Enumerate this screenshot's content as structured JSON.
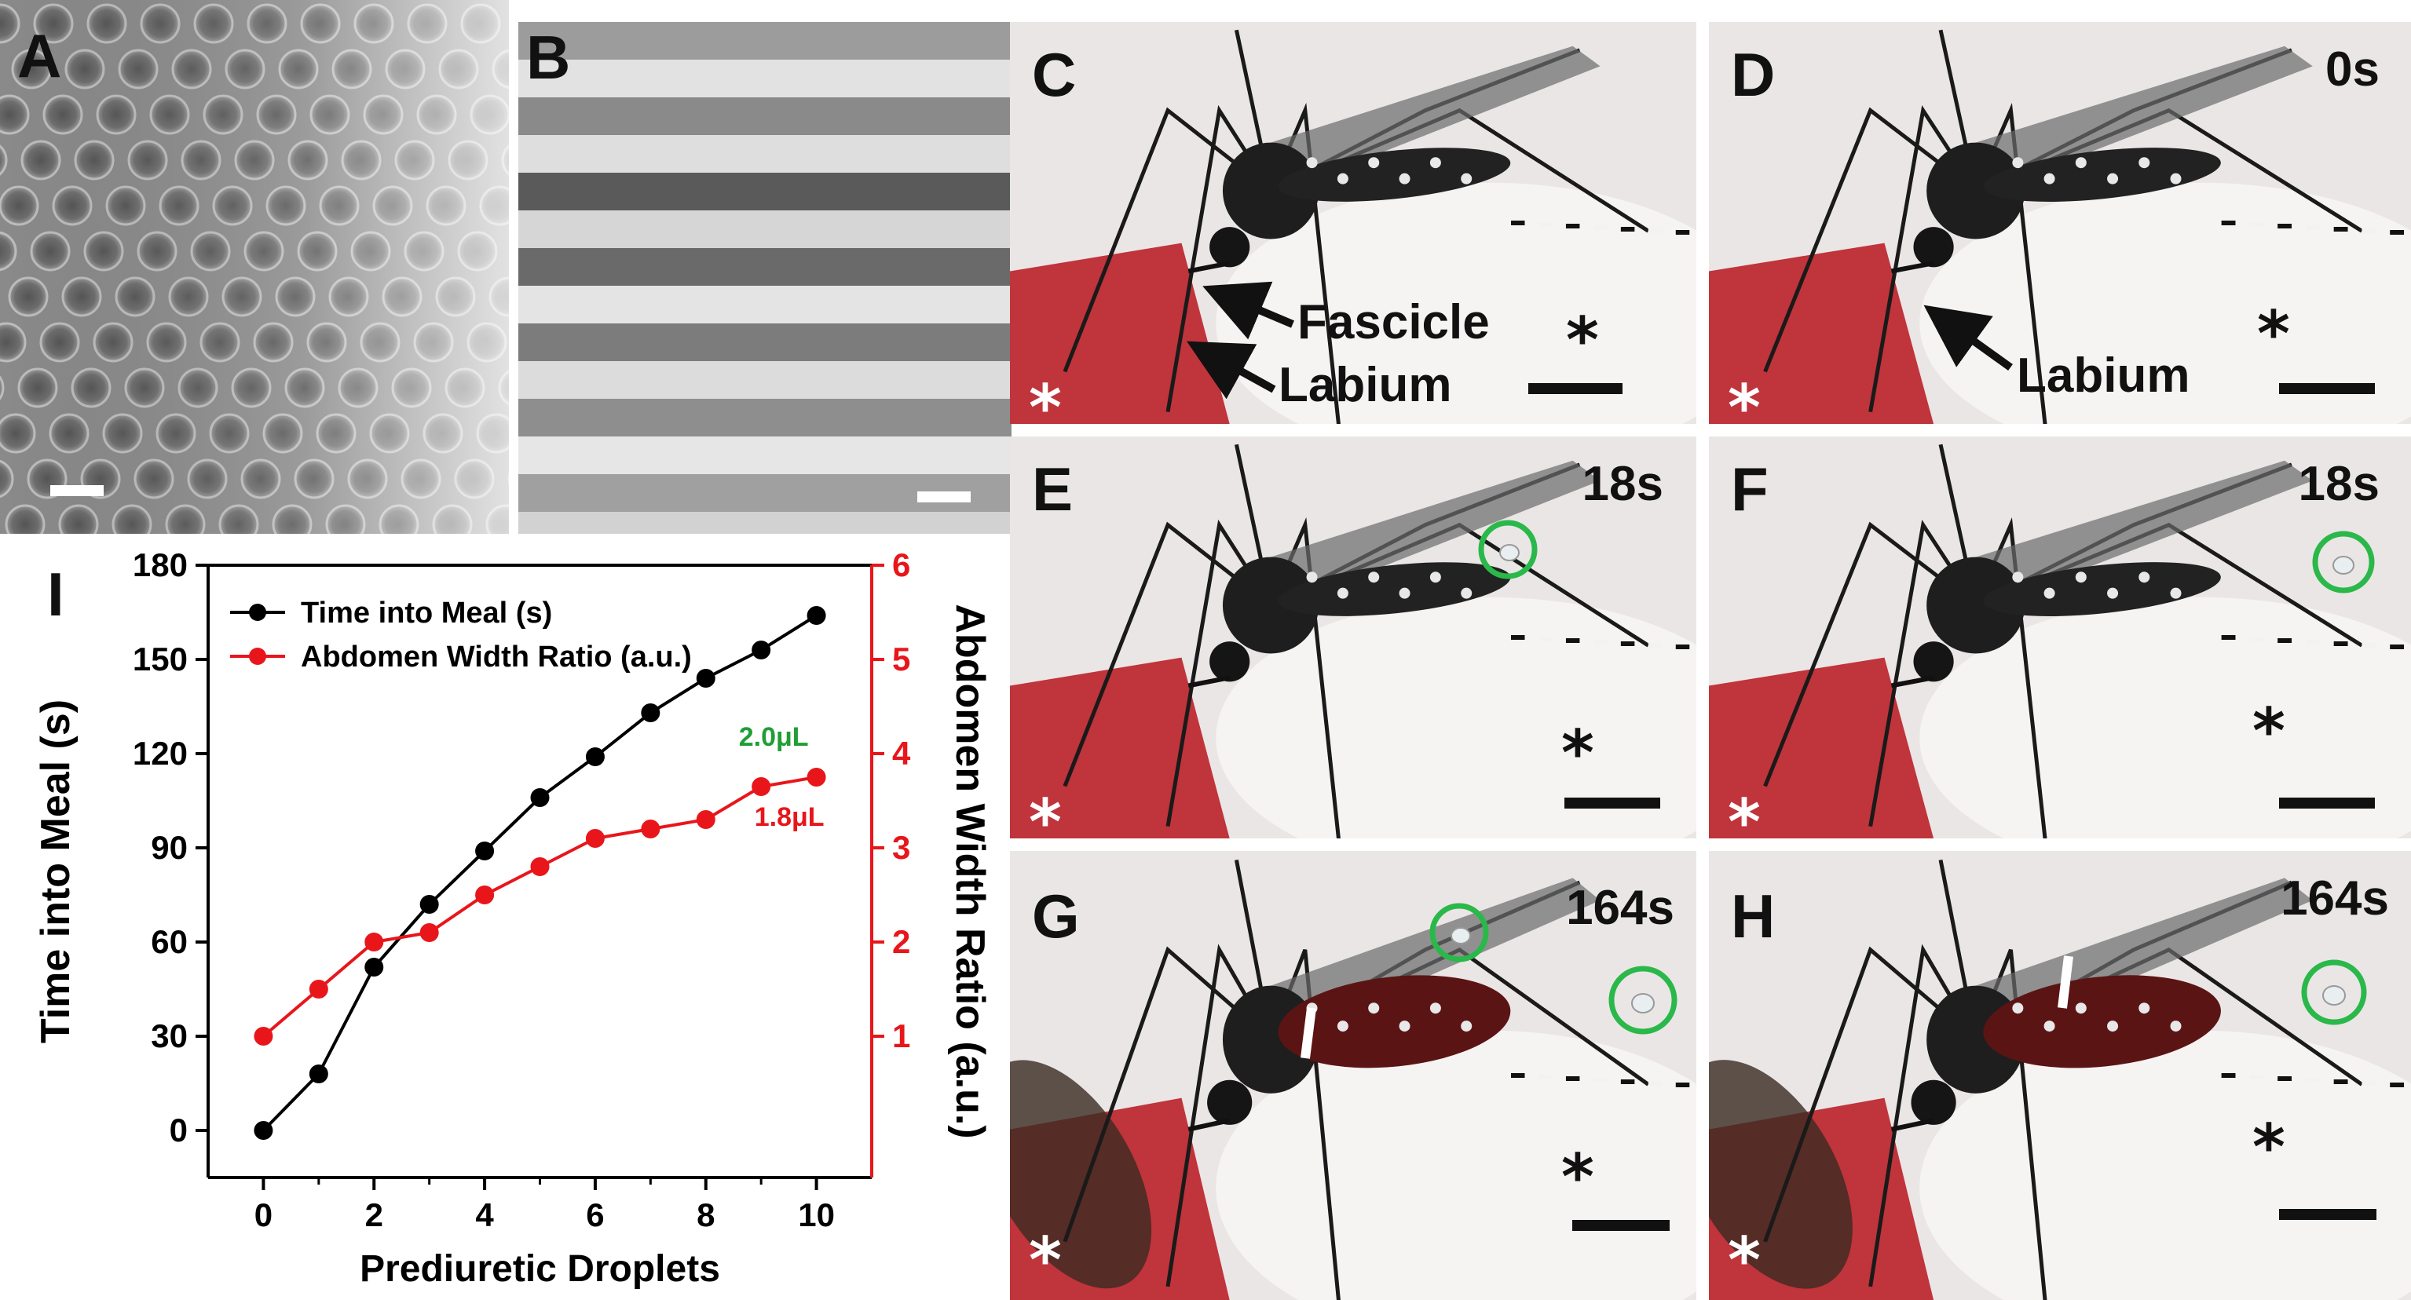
{
  "panels": {
    "A": {
      "label": "A"
    },
    "B": {
      "label": "B"
    },
    "C": {
      "label": "C",
      "annotations": {
        "fascicle": "Fascicle",
        "labium": "Labium"
      },
      "asterisk": "*"
    },
    "D": {
      "label": "D",
      "time": "0s",
      "annotations": {
        "labium": "Labium"
      },
      "asterisk": "*"
    },
    "E": {
      "label": "E",
      "time": "18s",
      "asterisk": "*"
    },
    "F": {
      "label": "F",
      "time": "18s",
      "asterisk": "*"
    },
    "G": {
      "label": "G",
      "time": "164s",
      "asterisk": "*"
    },
    "H": {
      "label": "H",
      "time": "164s",
      "asterisk": "*"
    },
    "I": {
      "label": "I"
    }
  },
  "colors": {
    "series_black": "#000000",
    "series_red": "#e8161b",
    "volume_green": "#1f9e35",
    "circle_green": "#2bb84a",
    "blood": "#b8141c"
  },
  "chart_data": {
    "type": "line",
    "xlabel": "Prediuretic Droplets",
    "ylabel_left": "Time into Meal (s)",
    "ylabel_right": "Abdomen Width Ratio (a.u.)",
    "xlim": [
      -1,
      11
    ],
    "xticks": [
      0,
      2,
      4,
      6,
      8,
      10
    ],
    "ylim_left": [
      -15,
      180
    ],
    "yticks_left": [
      0,
      30,
      60,
      90,
      120,
      150,
      180
    ],
    "ylim_right": [
      -0.5,
      6
    ],
    "yticks_right": [
      1,
      2,
      3,
      4,
      5,
      6
    ],
    "legend_position": "top-left",
    "series": [
      {
        "name": "Time into Meal (s)",
        "axis": "left",
        "color": "#000000",
        "x": [
          0,
          1,
          2,
          3,
          4,
          5,
          6,
          7,
          8,
          9,
          10
        ],
        "values": [
          0,
          18,
          52,
          72,
          89,
          106,
          119,
          133,
          144,
          153,
          164
        ]
      },
      {
        "name": "Abdomen Width Ratio (a.u.)",
        "axis": "right",
        "color": "#e8161b",
        "x": [
          0,
          1,
          2,
          3,
          4,
          5,
          6,
          7,
          8,
          9,
          10
        ],
        "values": [
          1.0,
          1.5,
          2.0,
          2.1,
          2.5,
          2.8,
          3.1,
          3.2,
          3.3,
          3.65,
          3.75
        ]
      }
    ],
    "annotations": [
      {
        "text": "2.0μL",
        "color": "#1f9e35"
      },
      {
        "text": "1.8μL",
        "color": "#e8161b"
      }
    ]
  }
}
